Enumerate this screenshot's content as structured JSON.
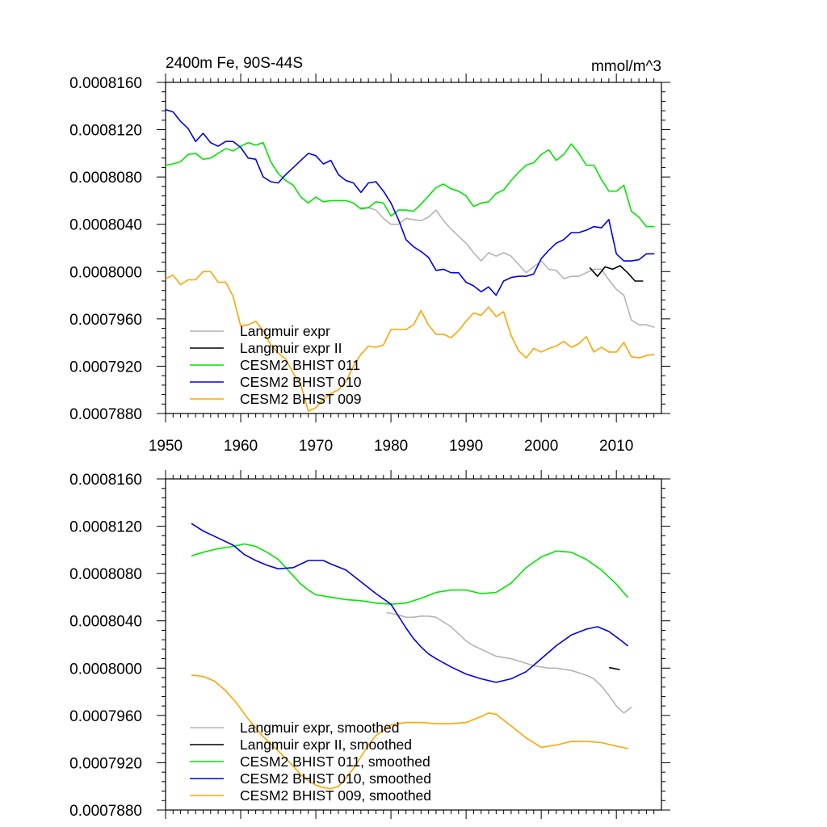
{
  "chart_data": [
    {
      "type": "line",
      "title": "2400m Fe, 90S-44S",
      "units": "mmol/m^3",
      "xlim": [
        1950,
        2016
      ],
      "ylim": [
        0.000788,
        0.000816
      ],
      "x_ticks": [
        "1950",
        "1960",
        "1970",
        "1980",
        "1990",
        "2000",
        "2010"
      ],
      "y_ticks": [
        "0.0008160",
        "0.0008120",
        "0.0008080",
        "0.0008040",
        "0.0008000",
        "0.0007960",
        "0.0007920",
        "0.0007880"
      ],
      "legend_position": "bottom-left",
      "series": [
        {
          "name": "Langmuir expr",
          "color": "#b4b4b4",
          "x": [
            1976,
            1977,
            1978,
            1979,
            1980,
            1981,
            1982,
            1983,
            1984,
            1985,
            1986,
            1987,
            1988,
            1989,
            1990,
            1991,
            1992,
            1993,
            1994,
            1995,
            1996,
            1997,
            1998,
            1999,
            2000,
            2001,
            2002,
            2003,
            2004,
            2005,
            2006,
            2007,
            2008,
            2009,
            2010,
            2011,
            2012,
            2013,
            2014,
            2015
          ],
          "values": [
            0.0008054,
            0.0008054,
            0.0008052,
            0.0008045,
            0.000804,
            0.000804,
            0.0008045,
            0.0008044,
            0.0008043,
            0.0008046,
            0.0008052,
            0.0008043,
            0.0008036,
            0.000803,
            0.0008024,
            0.0008016,
            0.0008009,
            0.0008016,
            0.0008013,
            0.0008016,
            0.0008013,
            0.0008006,
            0.0007999,
            0.0008004,
            0.0008009,
            0.0008002,
            0.0008001,
            0.0007994,
            0.0007996,
            0.0007996,
            0.0007999,
            0.0008002,
            0.0008002,
            0.0007993,
            0.0007985,
            0.000798,
            0.0007959,
            0.0007955,
            0.0007955,
            0.0007953
          ]
        },
        {
          "name": "Langmuir expr II",
          "color": "#000000",
          "x": [
            2006.5,
            2007.5,
            2008.5,
            2009.5,
            2010.5,
            2011.5,
            2012.5,
            2013.5
          ],
          "values": [
            0.0008003,
            0.0007996,
            0.0008004,
            0.0008002,
            0.0008005,
            0.0007999,
            0.0007992,
            0.0007992
          ]
        },
        {
          "name": "CESM2 BHIST 011",
          "color": "#00e600",
          "x": [
            1950,
            1951,
            1952,
            1953,
            1954,
            1955,
            1956,
            1957,
            1958,
            1959,
            1960,
            1961,
            1962,
            1963,
            1964,
            1965,
            1966,
            1967,
            1968,
            1969,
            1970,
            1971,
            1972,
            1973,
            1974,
            1975,
            1976,
            1977,
            1978,
            1979,
            1980,
            1981,
            1982,
            1983,
            1984,
            1985,
            1986,
            1987,
            1988,
            1989,
            1990,
            1991,
            1992,
            1993,
            1994,
            1995,
            1996,
            1997,
            1998,
            1999,
            2000,
            2001,
            2002,
            2003,
            2004,
            2005,
            2006,
            2007,
            2008,
            2009,
            2010,
            2011,
            2012,
            2013,
            2014,
            2015
          ],
          "values": [
            0.000809,
            0.0008091,
            0.0008093,
            0.0008099,
            0.00081,
            0.0008095,
            0.0008096,
            0.00081,
            0.0008104,
            0.0008102,
            0.0008106,
            0.0008109,
            0.0008107,
            0.0008109,
            0.0008093,
            0.0008083,
            0.0008077,
            0.0008073,
            0.0008063,
            0.0008058,
            0.0008063,
            0.0008059,
            0.000806,
            0.000806,
            0.000806,
            0.0008058,
            0.0008053,
            0.0008054,
            0.0008059,
            0.0008058,
            0.0008047,
            0.0008052,
            0.0008052,
            0.0008051,
            0.0008057,
            0.0008064,
            0.0008071,
            0.0008074,
            0.000807,
            0.0008068,
            0.0008064,
            0.0008055,
            0.0008058,
            0.0008059,
            0.0008066,
            0.0008069,
            0.0008077,
            0.0008084,
            0.000809,
            0.0008092,
            0.0008099,
            0.0008103,
            0.0008094,
            0.0008099,
            0.0008108,
            0.00081,
            0.000809,
            0.000809,
            0.0008078,
            0.0008068,
            0.0008068,
            0.0008073,
            0.0008051,
            0.0008046,
            0.0008038,
            0.0008038
          ]
        },
        {
          "name": "CESM2 BHIST 010",
          "color": "#0000e6",
          "x": [
            1950,
            1951,
            1952,
            1953,
            1954,
            1955,
            1956,
            1957,
            1958,
            1959,
            1960,
            1961,
            1962,
            1963,
            1964,
            1965,
            1966,
            1967,
            1968,
            1969,
            1970,
            1971,
            1972,
            1973,
            1974,
            1975,
            1976,
            1977,
            1978,
            1979,
            1980,
            1981,
            1982,
            1983,
            1984,
            1985,
            1986,
            1987,
            1988,
            1989,
            1990,
            1991,
            1992,
            1993,
            1994,
            1995,
            1996,
            1997,
            1998,
            1999,
            2000,
            2001,
            2002,
            2003,
            2004,
            2005,
            2006,
            2007,
            2008,
            2009,
            2010,
            2011,
            2012,
            2013,
            2014,
            2015
          ],
          "values": [
            0.0008137,
            0.0008135,
            0.0008127,
            0.0008121,
            0.000811,
            0.0008117,
            0.0008109,
            0.0008106,
            0.000811,
            0.000811,
            0.0008105,
            0.0008096,
            0.0008095,
            0.000808,
            0.0008076,
            0.0008075,
            0.0008082,
            0.0008088,
            0.0008094,
            0.00081,
            0.0008098,
            0.0008091,
            0.0008094,
            0.0008082,
            0.0008077,
            0.0008075,
            0.0008067,
            0.0008075,
            0.0008076,
            0.0008068,
            0.0008058,
            0.0008044,
            0.0008027,
            0.0008021,
            0.0008017,
            0.0008012,
            0.0008001,
            0.0008002,
            0.0007999,
            0.0007999,
            0.0007991,
            0.0007988,
            0.0007983,
            0.0007987,
            0.000798,
            0.0007992,
            0.0007995,
            0.0007996,
            0.0007996,
            0.0007998,
            0.0008011,
            0.0008018,
            0.0008024,
            0.0008027,
            0.0008033,
            0.0008033,
            0.0008035,
            0.0008038,
            0.0008037,
            0.0008044,
            0.0008015,
            0.0008009,
            0.0008009,
            0.000801,
            0.0008015,
            0.0008015
          ]
        },
        {
          "name": "CESM2 BHIST 009",
          "color": "#ffa500",
          "x": [
            1950,
            1951,
            1952,
            1953,
            1954,
            1955,
            1956,
            1957,
            1958,
            1959,
            1960,
            1961,
            1962,
            1963,
            1964,
            1965,
            1966,
            1967,
            1968,
            1969,
            1970,
            1971,
            1972,
            1973,
            1974,
            1975,
            1976,
            1977,
            1978,
            1979,
            1980,
            1981,
            1982,
            1983,
            1984,
            1985,
            1986,
            1987,
            1988,
            1989,
            1990,
            1991,
            1992,
            1993,
            1994,
            1995,
            1996,
            1997,
            1998,
            1999,
            2000,
            2001,
            2002,
            2003,
            2004,
            2005,
            2006,
            2007,
            2008,
            2009,
            2010,
            2011,
            2012,
            2013,
            2014,
            2015
          ],
          "values": [
            0.0007994,
            0.0007997,
            0.0007989,
            0.0007993,
            0.0007993,
            0.0008,
            0.0008,
            0.0007991,
            0.0007991,
            0.0007979,
            0.0007954,
            0.0007955,
            0.0007958,
            0.000795,
            0.0007938,
            0.0007931,
            0.0007926,
            0.0007914,
            0.0007904,
            0.0007882,
            0.0007885,
            0.0007892,
            0.0007897,
            0.00079,
            0.0007907,
            0.000792,
            0.000793,
            0.0007937,
            0.0007936,
            0.0007938,
            0.0007951,
            0.0007951,
            0.0007951,
            0.0007955,
            0.0007967,
            0.0007955,
            0.0007947,
            0.0007947,
            0.0007944,
            0.000795,
            0.0007958,
            0.0007965,
            0.0007963,
            0.000797,
            0.0007962,
            0.0007966,
            0.0007946,
            0.0007933,
            0.0007927,
            0.0007935,
            0.0007932,
            0.0007935,
            0.0007937,
            0.0007941,
            0.0007936,
            0.0007939,
            0.0007945,
            0.0007932,
            0.0007936,
            0.0007932,
            0.0007932,
            0.000794,
            0.0007928,
            0.0007927,
            0.0007929,
            0.000793
          ]
        }
      ]
    },
    {
      "type": "line",
      "title": "",
      "xlim": [
        1950,
        2016
      ],
      "ylim": [
        0.000788,
        0.000816
      ],
      "y_ticks": [
        "0.0008160",
        "0.0008120",
        "0.0008080",
        "0.0008040",
        "0.0008000",
        "0.0007960",
        "0.0007920",
        "0.0007880"
      ],
      "legend_position": "bottom-left",
      "series": [
        {
          "name": "Langmuir expr, smoothed",
          "color": "#b4b4b4",
          "x": [
            1979.5,
            1981,
            1982,
            1983,
            1984,
            1985,
            1986,
            1987,
            1988,
            1989,
            1990,
            1991,
            1992,
            1993,
            1994,
            1995,
            1996,
            1997,
            1998,
            1999,
            2000,
            2001,
            2002,
            2003,
            2004,
            2005,
            2006,
            2007,
            2008,
            2009,
            2010,
            2011,
            2012
          ],
          "values": [
            0.0008047,
            0.0008045,
            0.0008043,
            0.0008043,
            0.0008044,
            0.0008044,
            0.0008043,
            0.0008039,
            0.0008035,
            0.0008029,
            0.0008023,
            0.0008019,
            0.0008016,
            0.0008013,
            0.000801,
            0.0008009,
            0.0008008,
            0.0008006,
            0.0008004,
            0.0008002,
            0.0008001,
            0.0008,
            0.0008,
            0.0007999,
            0.0007998,
            0.0007996,
            0.0007994,
            0.0007991,
            0.0007985,
            0.0007977,
            0.0007968,
            0.0007962,
            0.0007967
          ]
        },
        {
          "name": "Langmuir expr II, smoothed",
          "color": "#000000",
          "x": [
            2009.1,
            2010.4
          ],
          "values": [
            0.00080004,
            0.00079988
          ]
        },
        {
          "name": "CESM2 BHIST 011, smoothed",
          "color": "#00e600",
          "x": [
            1953.5,
            1955,
            1957,
            1959,
            1960.5,
            1962,
            1963.5,
            1965,
            1966,
            1967,
            1968,
            1969,
            1970,
            1972,
            1974,
            1976,
            1978,
            1980,
            1982,
            1984,
            1986,
            1988,
            1990,
            1992,
            1994,
            1996,
            1998,
            2000,
            2002,
            2004,
            2006,
            2008,
            2010,
            2011.5
          ],
          "values": [
            0.0008095,
            0.0008098,
            0.0008101,
            0.0008103,
            0.0008105,
            0.0008103,
            0.0008098,
            0.0008092,
            0.0008085,
            0.0008078,
            0.0008071,
            0.0008066,
            0.0008062,
            0.000806,
            0.0008058,
            0.0008057,
            0.0008055,
            0.0008054,
            0.0008055,
            0.0008059,
            0.0008064,
            0.0008066,
            0.0008066,
            0.0008063,
            0.0008064,
            0.0008072,
            0.0008085,
            0.0008094,
            0.0008099,
            0.0008098,
            0.0008092,
            0.0008083,
            0.0008071,
            0.000806
          ]
        },
        {
          "name": "CESM2 BHIST 010, smoothed",
          "color": "#0000e6",
          "x": [
            1953.5,
            1955,
            1957,
            1959,
            1960.5,
            1962,
            1963.5,
            1965,
            1967,
            1968,
            1969,
            1970,
            1971,
            1972,
            1974,
            1976,
            1978,
            1980,
            1981,
            1982,
            1983,
            1984,
            1985,
            1986,
            1988,
            1990,
            1992,
            1994,
            1996,
            1998,
            2000,
            2002,
            2004,
            2006,
            2007.5,
            2009,
            2010.5,
            2011.5
          ],
          "values": [
            0.0008122,
            0.0008116,
            0.000811,
            0.0008104,
            0.0008096,
            0.0008091,
            0.0008087,
            0.0008084,
            0.0008085,
            0.0008088,
            0.0008091,
            0.0008091,
            0.0008091,
            0.0008088,
            0.0008083,
            0.0008073,
            0.0008063,
            0.0008054,
            0.0008044,
            0.0008034,
            0.0008025,
            0.0008018,
            0.0008012,
            0.0008008,
            0.0008001,
            0.0007995,
            0.0007991,
            0.0007988,
            0.0007991,
            0.0007997,
            0.0008008,
            0.0008019,
            0.0008028,
            0.0008033,
            0.0008035,
            0.0008031,
            0.0008024,
            0.0008019
          ]
        },
        {
          "name": "CESM2 BHIST 009, smoothed",
          "color": "#ffa500",
          "x": [
            1953.5,
            1955,
            1956.5,
            1958,
            1959.5,
            1961,
            1963,
            1965,
            1967,
            1968,
            1969,
            1970,
            1971,
            1972,
            1973,
            1974,
            1975,
            1976,
            1977,
            1978,
            1980,
            1982,
            1984,
            1986,
            1988,
            1990,
            1992,
            1993,
            1994,
            1996,
            1998,
            2000,
            2002,
            2004,
            2006,
            2008,
            2010,
            2011.5
          ],
          "values": [
            0.0007994,
            0.0007993,
            0.0007989,
            0.0007981,
            0.000797,
            0.0007957,
            0.0007942,
            0.000793,
            0.0007917,
            0.000791,
            0.0007905,
            0.0007901,
            0.0007899,
            0.0007898,
            0.00079,
            0.0007907,
            0.0007915,
            0.0007925,
            0.0007935,
            0.0007943,
            0.0007952,
            0.0007954,
            0.0007954,
            0.0007953,
            0.0007953,
            0.0007954,
            0.0007959,
            0.0007962,
            0.0007961,
            0.0007951,
            0.0007941,
            0.0007933,
            0.0007935,
            0.0007938,
            0.0007938,
            0.0007937,
            0.0007934,
            0.0007932
          ]
        }
      ]
    }
  ]
}
